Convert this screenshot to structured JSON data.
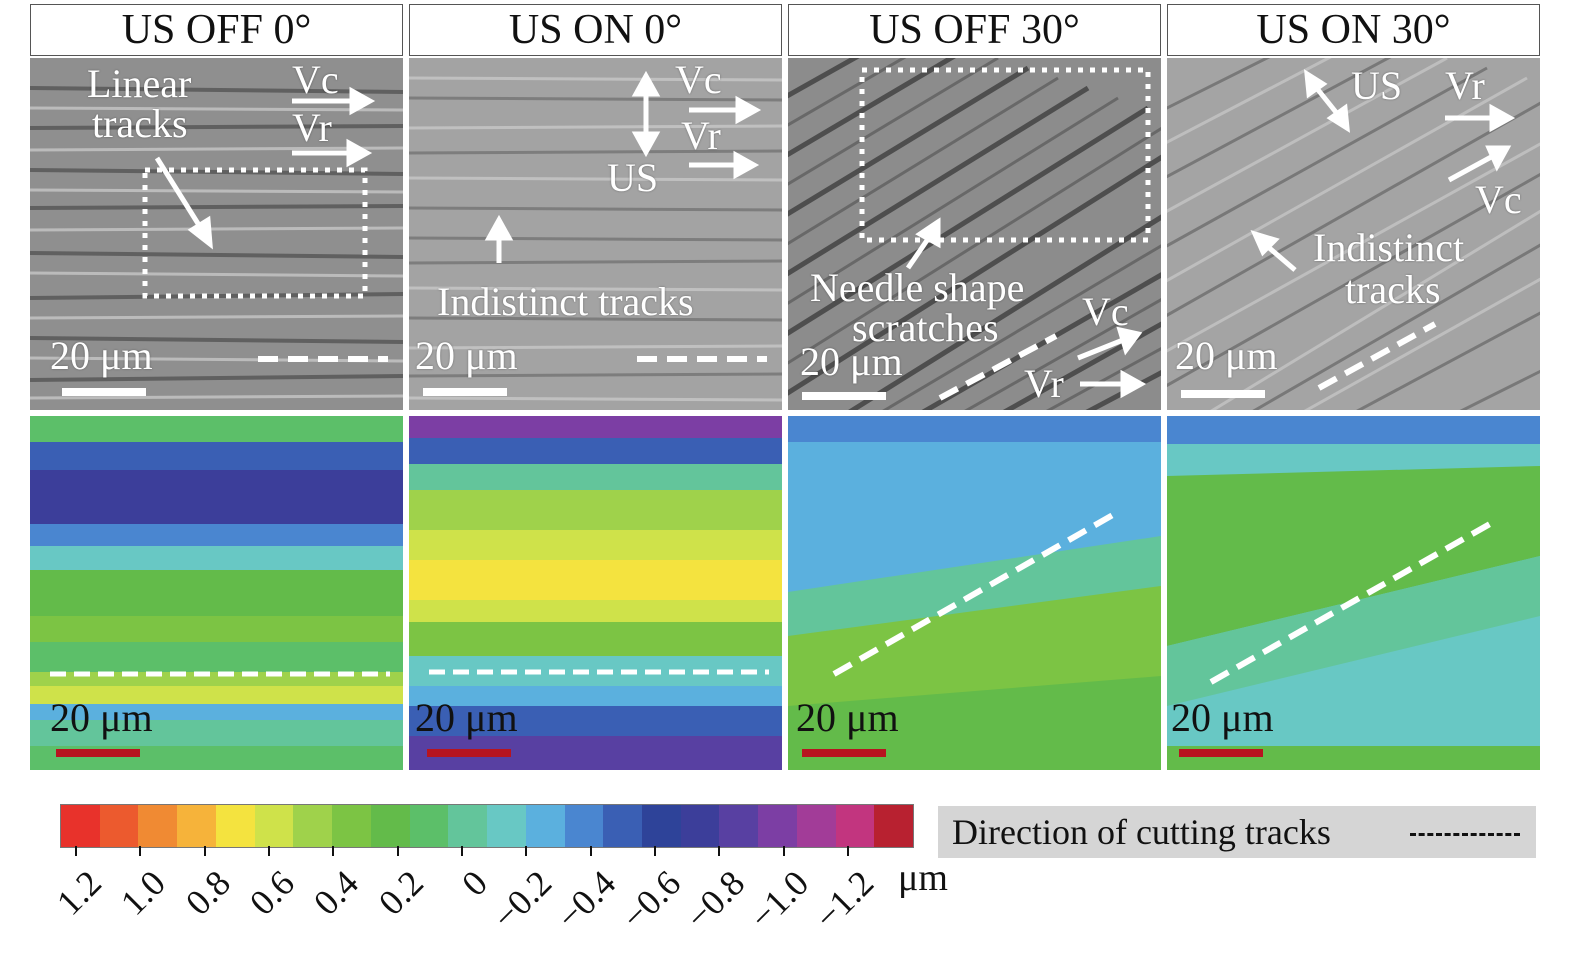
{
  "columns": [
    {
      "title": "US OFF 0°"
    },
    {
      "title": "US ON 0°"
    },
    {
      "title": "US OFF 30°"
    },
    {
      "title": "US ON 30°"
    }
  ],
  "sem_panels": [
    {
      "labels": {
        "vc": "Vc",
        "vr": "Vr",
        "note1": "Linear",
        "note2": "tracks",
        "scale": "20 μm"
      }
    },
    {
      "labels": {
        "vc": "Vc",
        "vr": "Vr",
        "us": "US",
        "note1": "Indistinct tracks",
        "scale": "20 μm"
      }
    },
    {
      "labels": {
        "vc": "Vc",
        "vr": "Vr",
        "note1": "Needle shape",
        "note2": "scratches",
        "scale": "20 μm"
      }
    },
    {
      "labels": {
        "vc": "Vc",
        "vr": "Vr",
        "us": "US",
        "note1": "Indistinct",
        "note2": "tracks",
        "scale": "20 μm"
      }
    }
  ],
  "height_maps": [
    {
      "scale": "20 μm"
    },
    {
      "scale": "20 μm"
    },
    {
      "scale": "20 μm"
    },
    {
      "scale": "20 μm"
    }
  ],
  "colorbar": {
    "unit": "μm",
    "tick_labels": [
      "1.2",
      "1.0",
      "0.8",
      "0.6",
      "0.4",
      "0.2",
      "0",
      "−0.2",
      "−0.4",
      "−0.6",
      "−0.8",
      "−1.0",
      "−1.2"
    ],
    "colors": [
      "#e8322b",
      "#ec5a2e",
      "#f08a33",
      "#f6b33a",
      "#f4e33f",
      "#cfe24a",
      "#9fd24b",
      "#7cc444",
      "#63bb4a",
      "#5cbf69",
      "#63c59b",
      "#68c8c4",
      "#5bb0de",
      "#4a86d0",
      "#3a5fb4",
      "#2e4399",
      "#3c3e9a",
      "#5840a2",
      "#7c3ea4",
      "#a23c98",
      "#c2357f",
      "#b82130"
    ]
  },
  "legend": {
    "text": "Direction of cutting tracks"
  }
}
